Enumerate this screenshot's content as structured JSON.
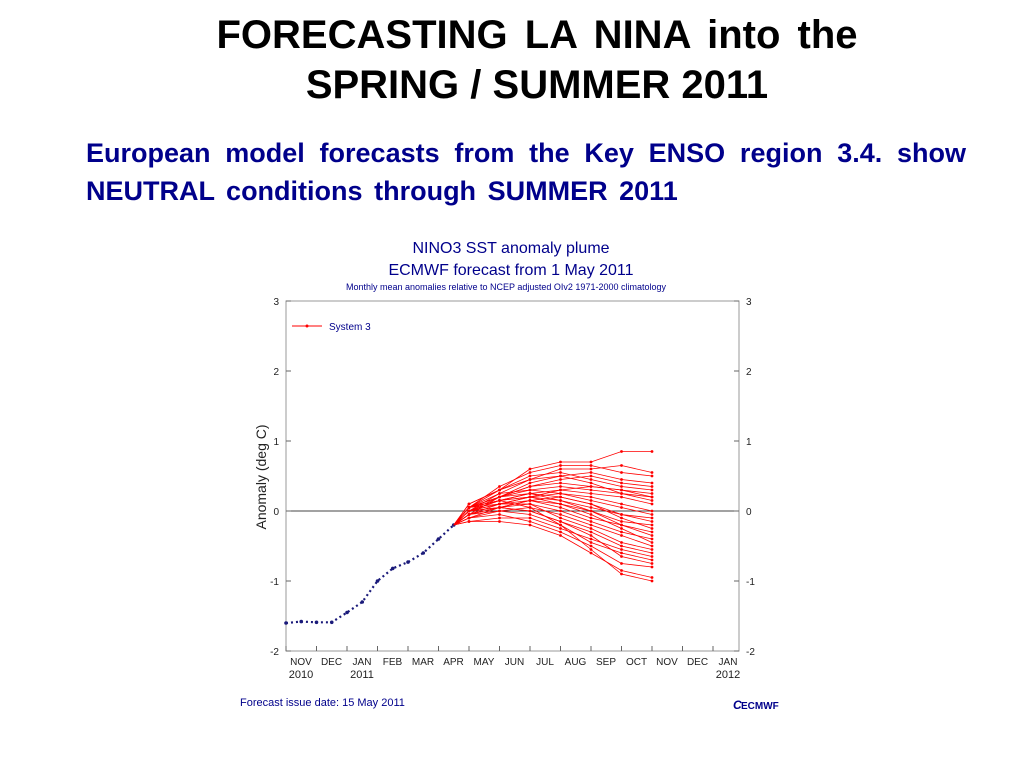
{
  "slide": {
    "title_line1": "FORECASTING LA NINA    into the",
    "title_line2": "SPRING / SUMMER 2011",
    "subtitle": "European  model forecasts  from the Key  ENSO region 3.4. show NEUTRAL conditions through SUMMER 2011"
  },
  "chart_data": {
    "type": "line",
    "title": "NINO3 SST anomaly plume",
    "subtitle": "ECMWF forecast from 1 May 2011",
    "note": "Monthly mean anomalies relative to NCEP adjusted OIv2 1971-2000 climatology",
    "ylabel": "Anomaly (deg C)",
    "ylim": [
      -2,
      3
    ],
    "yticks": [
      -2,
      -1,
      0,
      1,
      2,
      3
    ],
    "grid": false,
    "legend_position": "top-left",
    "x_tick_labels": [
      "NOV",
      "DEC",
      "JAN",
      "FEB",
      "MAR",
      "APR",
      "MAY",
      "JUN",
      "JUL",
      "AUG",
      "SEP",
      "OCT",
      "NOV",
      "DEC",
      "JAN"
    ],
    "x_year_labels": [
      {
        "label": "2010",
        "month_index": 0
      },
      {
        "label": "2011",
        "month_index": 2
      },
      {
        "label": "2012",
        "month_index": 14
      }
    ],
    "observed": {
      "color": "#1a1a7a",
      "x": [
        0,
        0.5,
        1,
        1.5,
        2,
        2.5,
        3,
        3.5,
        4,
        4.5,
        5,
        5.5
      ],
      "y": [
        -1.6,
        -1.58,
        -1.59,
        -1.59,
        -1.45,
        -1.3,
        -1.0,
        -0.82,
        -0.73,
        -0.6,
        -0.4,
        -0.2
      ]
    },
    "series_start": {
      "x": 5.5,
      "y": -0.2
    },
    "series": [
      {
        "name": "System 3",
        "color": "#ff0000",
        "x": [
          6,
          7,
          8,
          9,
          10,
          11,
          12
        ],
        "ensemble": [
          [
            0.05,
            0.3,
            0.6,
            0.7,
            0.7,
            0.85,
            0.85
          ],
          [
            0.05,
            0.35,
            0.55,
            0.65,
            0.65,
            0.55,
            0.5
          ],
          [
            0.0,
            0.25,
            0.45,
            0.6,
            0.6,
            0.65,
            0.55
          ],
          [
            0.0,
            0.2,
            0.4,
            0.5,
            0.55,
            0.45,
            0.4
          ],
          [
            0.1,
            0.3,
            0.5,
            0.55,
            0.45,
            0.35,
            0.3
          ],
          [
            -0.05,
            0.2,
            0.35,
            0.4,
            0.35,
            0.3,
            0.2
          ],
          [
            0.05,
            0.25,
            0.3,
            0.35,
            0.3,
            0.25,
            0.2
          ],
          [
            0.0,
            0.15,
            0.25,
            0.3,
            0.25,
            0.2,
            0.1
          ],
          [
            -0.05,
            0.1,
            0.2,
            0.25,
            0.2,
            0.1,
            0.0
          ],
          [
            0.05,
            0.2,
            0.3,
            0.25,
            0.15,
            0.05,
            -0.05
          ],
          [
            0.0,
            0.15,
            0.2,
            0.15,
            0.05,
            -0.05,
            -0.1
          ],
          [
            -0.1,
            0.05,
            0.15,
            0.1,
            0.0,
            -0.15,
            -0.2
          ],
          [
            0.05,
            0.2,
            0.25,
            0.2,
            0.1,
            -0.1,
            -0.25
          ],
          [
            0.0,
            0.1,
            0.15,
            0.05,
            -0.1,
            -0.2,
            -0.3
          ],
          [
            -0.05,
            0.05,
            0.1,
            0.0,
            -0.15,
            -0.3,
            -0.4
          ],
          [
            0.0,
            0.15,
            0.2,
            0.1,
            -0.05,
            -0.25,
            -0.45
          ],
          [
            -0.1,
            0.0,
            0.05,
            -0.05,
            -0.2,
            -0.35,
            -0.5
          ],
          [
            0.05,
            0.1,
            0.1,
            -0.1,
            -0.25,
            -0.45,
            -0.55
          ],
          [
            0.0,
            0.05,
            0.0,
            -0.15,
            -0.3,
            -0.5,
            -0.6
          ],
          [
            -0.15,
            -0.1,
            -0.1,
            -0.25,
            -0.4,
            -0.55,
            -0.65
          ],
          [
            -0.05,
            0.0,
            -0.05,
            -0.2,
            -0.45,
            -0.6,
            -0.7
          ],
          [
            0.0,
            0.05,
            0.0,
            -0.15,
            -0.35,
            -0.65,
            -0.75
          ],
          [
            -0.1,
            -0.05,
            -0.15,
            -0.3,
            -0.5,
            -0.75,
            -0.8
          ],
          [
            -0.15,
            -0.15,
            -0.2,
            -0.35,
            -0.6,
            -0.85,
            -0.95
          ],
          [
            0.05,
            0.15,
            0.05,
            -0.2,
            -0.55,
            -0.9,
            -1.0
          ],
          [
            0.1,
            0.3,
            0.45,
            0.5,
            0.4,
            0.25,
            0.15
          ],
          [
            0.05,
            0.2,
            0.35,
            0.45,
            0.5,
            0.4,
            0.35
          ],
          [
            0.0,
            0.1,
            0.2,
            0.3,
            0.35,
            0.3,
            0.25
          ],
          [
            -0.05,
            0.05,
            0.15,
            0.2,
            0.1,
            -0.05,
            -0.15
          ],
          [
            0.05,
            0.15,
            0.25,
            0.15,
            0.0,
            -0.2,
            -0.35
          ]
        ]
      }
    ],
    "footer_left": "Forecast issue date: 15 May 2011",
    "footer_right": "ECMWF"
  }
}
